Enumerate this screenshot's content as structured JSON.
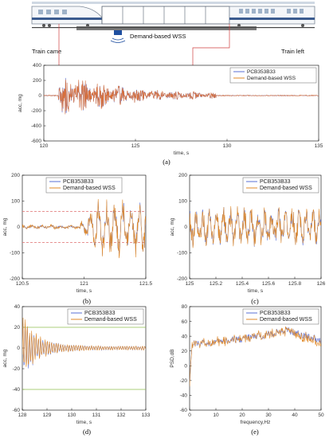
{
  "figure": {
    "illustration": {
      "sensor_label": "Demand-based WSS",
      "train_came": "Train came",
      "train_left": "Train left"
    },
    "panel_labels": [
      "(a)",
      "(b)",
      "(c)",
      "(d)",
      "(e)"
    ]
  },
  "colors": {
    "pcb": "#5a6fd6",
    "wss": "#e08a2a",
    "wss_a": "#d9703a",
    "dash_red": "#e07070",
    "dash_green": "#8fbf4f",
    "marker_red": "#d04040",
    "sensor_blue": "#1f4fa0"
  },
  "chart_data": [
    {
      "id": "a",
      "type": "line",
      "xlabel": "time, s",
      "ylabel": "acc, mg",
      "xlim": [
        120,
        135
      ],
      "ylim": [
        -600,
        400
      ],
      "xticks": [
        "120",
        "125",
        "130",
        "135"
      ],
      "yticks": [
        "400",
        "200",
        "0",
        "-200",
        "-400",
        "-600"
      ],
      "legend": [
        "PCB353B33",
        "Demand-based WSS"
      ],
      "legend_position": "top-right",
      "signal": {
        "start": 120.8,
        "end": 129.4,
        "peak": 290,
        "decay": 0.25,
        "noise_amp": 4
      }
    },
    {
      "id": "b",
      "type": "line",
      "xlabel": "time, s",
      "ylabel": "acc, mg",
      "xlim": [
        120.5,
        121.5
      ],
      "ylim": [
        -200,
        200
      ],
      "xticks": [
        "120.5",
        "121",
        "121.5"
      ],
      "yticks": [
        "200",
        "100",
        "0",
        "-100",
        "-200"
      ],
      "legend": [
        "PCB353B33",
        "Demand-based WSS"
      ],
      "legend_position": "top",
      "threshold_lines": [
        60,
        -60
      ],
      "signal": {
        "start": 120.95,
        "quiet_amp": 4,
        "active_amp": 110
      }
    },
    {
      "id": "c",
      "type": "line",
      "xlabel": "time, s",
      "ylabel": "acc, mg",
      "xlim": [
        125,
        126
      ],
      "ylim": [
        -200,
        200
      ],
      "xticks": [
        "125",
        "125.2",
        "125.4",
        "125.6",
        "125.8",
        "126"
      ],
      "yticks": [
        "200",
        "100",
        "0",
        "-100",
        "-200"
      ],
      "legend": [
        "PCB353B33",
        "Demand-based WSS"
      ],
      "legend_position": "top-right",
      "signal": {
        "amp": 80
      }
    },
    {
      "id": "d",
      "type": "line",
      "xlabel": "time, s",
      "ylabel": "acc, mg",
      "xlim": [
        128,
        133
      ],
      "ylim": [
        -60,
        40
      ],
      "xticks": [
        "128",
        "129",
        "130",
        "131",
        "132",
        "133"
      ],
      "yticks": [
        "40",
        "20",
        "0",
        "-20",
        "-40",
        "-60"
      ],
      "legend": [
        "PCB353B33",
        "Demand-based WSS"
      ],
      "legend_position": "top-right",
      "threshold_lines": [
        20,
        -40
      ],
      "signal": {
        "start_amp": 30,
        "decay": 1.6,
        "floor_amp": 2
      }
    },
    {
      "id": "e",
      "type": "line",
      "xlabel": "frequency,Hz",
      "ylabel": "PSD,dB",
      "xlim": [
        0,
        50
      ],
      "ylim": [
        -60,
        80
      ],
      "xticks": [
        "0",
        "10",
        "20",
        "30",
        "40",
        "50"
      ],
      "yticks": [
        "80",
        "60",
        "40",
        "20",
        "0",
        "-20",
        "-40",
        "-60"
      ],
      "legend": [
        "PCB353B33",
        "Demand-based WSS"
      ],
      "legend_position": "top-right",
      "signal": {
        "start": -20,
        "plateau": 30,
        "peak_at": 37,
        "peak": 48,
        "end": 35
      }
    }
  ]
}
